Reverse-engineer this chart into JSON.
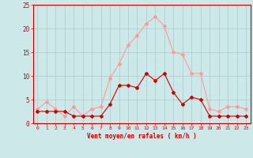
{
  "hours": [
    0,
    1,
    2,
    3,
    4,
    5,
    6,
    7,
    8,
    9,
    10,
    11,
    12,
    13,
    14,
    15,
    16,
    17,
    18,
    19,
    20,
    21,
    22,
    23
  ],
  "vent_moyen": [
    2.5,
    2.5,
    2.5,
    2.5,
    1.5,
    1.5,
    1.5,
    1.5,
    4.0,
    8.0,
    8.0,
    7.5,
    10.5,
    9.0,
    10.5,
    6.5,
    4.0,
    5.5,
    5.0,
    1.5,
    1.5,
    1.5,
    1.5,
    1.5
  ],
  "en_rafales": [
    3.0,
    4.5,
    3.0,
    1.5,
    3.5,
    1.5,
    3.0,
    3.5,
    9.5,
    12.5,
    16.5,
    18.5,
    21.0,
    22.5,
    20.5,
    15.0,
    14.5,
    10.5,
    10.5,
    3.0,
    2.5,
    3.5,
    3.5,
    3.0
  ],
  "color_moyen": "#cc0000",
  "color_rafales": "#ff9999",
  "bg_color": "#cce8e8",
  "grid_color": "#aacccc",
  "xlabel": "Vent moyen/en rafales ( km/h )",
  "ylim": [
    0,
    25
  ],
  "yticks": [
    0,
    5,
    10,
    15,
    20,
    25
  ],
  "marker": "D",
  "marker_size": 2.0,
  "linewidth": 0.8
}
